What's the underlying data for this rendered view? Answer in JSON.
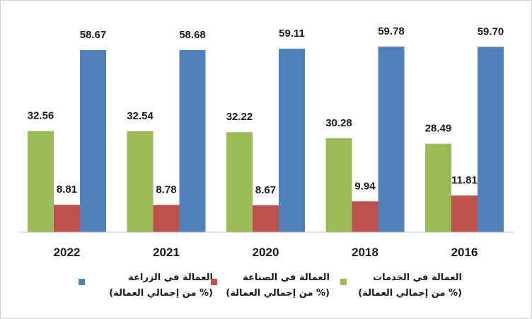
{
  "chart_data": {
    "type": "bar",
    "categories": [
      "2022",
      "2021",
      "2020",
      "2018",
      "2016"
    ],
    "series": [
      {
        "name": "العمالة في الخدمات (% من إجمالي العمالة)",
        "label_line1": "العمالة في الخدمات",
        "label_line2": "(% من إجمالي العمالة)",
        "color": "#9bbb59",
        "values": [
          32.56,
          32.54,
          32.22,
          30.28,
          28.49
        ]
      },
      {
        "name": "العمالة في الصناعة (% من إجمالي العمالة)",
        "label_line1": "العمالة في الصناعة",
        "label_line2": "(% من إجمالي العمالة)",
        "color": "#c0504d",
        "values": [
          8.81,
          8.78,
          8.67,
          9.94,
          11.81
        ]
      },
      {
        "name": "العمالة في الزراعة (% من إجمالي العمالة)",
        "label_line1": "العمالة في الزراعة",
        "label_line2": "(% من إجمالي العمالة)",
        "color": "#4f81bd",
        "values": [
          58.67,
          58.68,
          59.11,
          59.78,
          59.7
        ]
      }
    ],
    "data_labels": [
      [
        "32.56",
        "32.54",
        "32.22",
        "30.28",
        "28.49"
      ],
      [
        "8.81",
        "8.78",
        "8.67",
        "9.94",
        "11.81"
      ],
      [
        "58.67",
        "58.68",
        "59.11",
        "59.78",
        "59.70"
      ]
    ],
    "title": "",
    "xlabel": "",
    "ylabel": "",
    "ylim": [
      0,
      70
    ],
    "grid": false,
    "legend_position": "bottom"
  }
}
